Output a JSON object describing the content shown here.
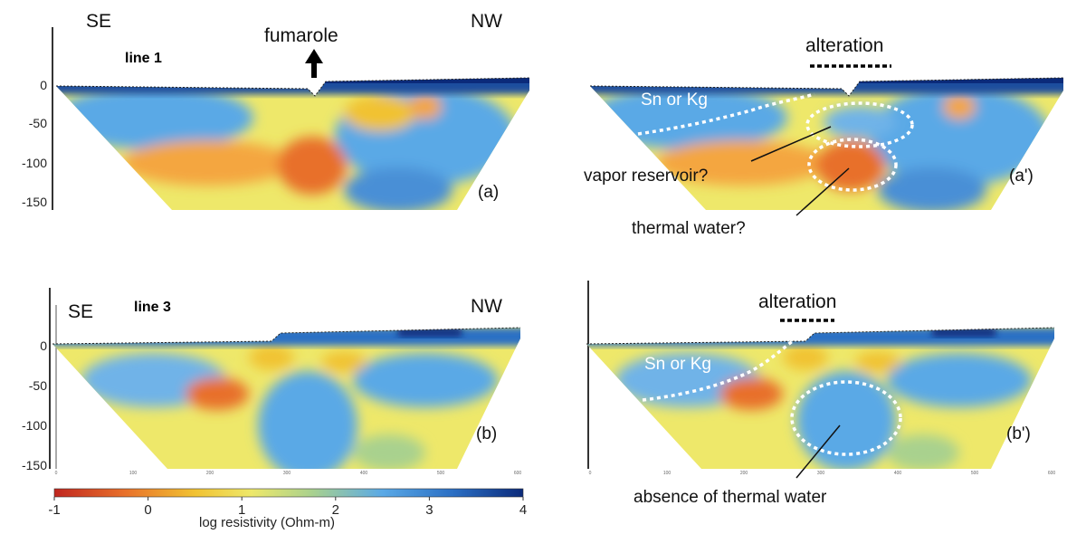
{
  "labels": {
    "se_top": "SE",
    "nw_top": "NW",
    "se_bottom": "SE",
    "nw_bottom": "NW",
    "line1": "line 1",
    "line3": "line 3",
    "fumarole": "fumarole",
    "alteration_top": "alteration",
    "alteration_bottom": "alteration",
    "panel_a": "(a)",
    "panel_a_prime": "(a')",
    "panel_b": "(b)",
    "panel_b_prime": "(b')",
    "sn_kg_top": "Sn or Kg",
    "sn_kg_bottom": "Sn or Kg",
    "vapor": "vapor reservoir?",
    "thermal": "thermal water?",
    "absence": "absence of thermal water"
  },
  "depth_ticks": [
    "0",
    "-50",
    "-100",
    "-150"
  ],
  "distance_ticks": [
    "0",
    "100",
    "200",
    "300",
    "400",
    "500",
    "600"
  ],
  "colorbar": {
    "ticks": [
      "-1",
      "0",
      "1",
      "2",
      "3",
      "4"
    ],
    "label": "log resistivity (Ohm-m)",
    "stops": [
      "#c0261f",
      "#e8702a",
      "#f1c232",
      "#eee86a",
      "#a9d18e",
      "#5aa9e6",
      "#2b6fc4",
      "#0b2a7a"
    ]
  },
  "colors": {
    "high_res": "#0b2a7a",
    "mid_res": "#5aa9e6",
    "low_res": "#e8702a",
    "background": "#eee86a"
  }
}
